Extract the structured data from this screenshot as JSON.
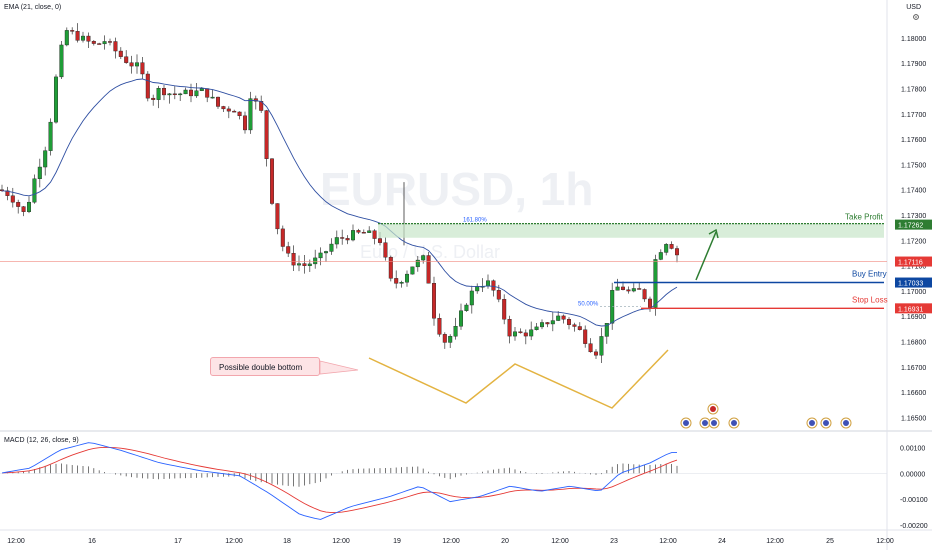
{
  "legend": {
    "ema": "EMA (21, close, 0)",
    "macd": "MACD (12, 26, close, 9)",
    "currency": "USD"
  },
  "watermark": {
    "symbol": "EURUSD, 1h",
    "name": "Euro / U.S. Dollar"
  },
  "annotations": {
    "take_profit": "Take Profit",
    "buy_entry": "Buy Entry",
    "stop_loss": "Stop Loss",
    "fib_1618": "161.80%",
    "fib_50": "50.00%",
    "callout": "Possible double bottom"
  },
  "price_badges": {
    "take_profit": "1.17262",
    "current": "1.17116",
    "buy_entry": "1.17033",
    "stop_loss": "1.16931"
  },
  "colors": {
    "up": "#26a69a",
    "candle_up": "#1f9d37",
    "candle_down": "#c62828",
    "ema": "#2f4fa2",
    "macd": "#2962ff",
    "signal": "#e53935",
    "take_profit": "#2e7d32",
    "buy_entry": "#0d47a1",
    "stop_loss": "#e53935",
    "pattern": "#e3b341",
    "current_price_line": "#f28b82"
  },
  "chart_data": [
    {
      "type": "candlestick",
      "title": "EURUSD, 1h",
      "x_ticks": [
        "12:00",
        "16",
        "17",
        "12:00",
        "18",
        "12:00",
        "19",
        "12:00",
        "20",
        "12:00",
        "23",
        "12:00",
        "24",
        "12:00",
        "25",
        "12:00"
      ],
      "y_ticks": [
        1.165,
        1.166,
        1.167,
        1.168,
        1.169,
        1.17,
        1.171,
        1.172,
        1.173,
        1.174,
        1.175,
        1.176,
        1.177,
        1.178,
        1.179,
        1.18
      ],
      "y_tick_labels": [
        "1.16500",
        "1.16600",
        "1.16700",
        "1.16800",
        "1.16900",
        "1.17000",
        "1.17100",
        "1.17200",
        "1.17300",
        "1.17400",
        "1.17500",
        "1.17600",
        "1.17700",
        "1.17800",
        "1.17900",
        "1.18000"
      ],
      "ylim": [
        1.1645,
        1.1815
      ],
      "levels": {
        "take_profit": 1.17262,
        "buy_entry": 1.17033,
        "stop_loss": 1.16931,
        "current_price": 1.17116
      },
      "pattern": "double bottom",
      "ema_period": 21
    },
    {
      "type": "line",
      "title": "MACD (12, 26, close, 9)",
      "y_ticks": [
        0.001,
        0.0,
        -0.001,
        -0.002
      ],
      "y_tick_labels": [
        "0.00100",
        "0.00000",
        "-0.00100",
        "-0.00200"
      ],
      "ylim": [
        -0.0022,
        0.0016
      ],
      "series": [
        {
          "name": "MACD",
          "color": "#2962ff"
        },
        {
          "name": "Signal",
          "color": "#e53935"
        }
      ]
    }
  ]
}
